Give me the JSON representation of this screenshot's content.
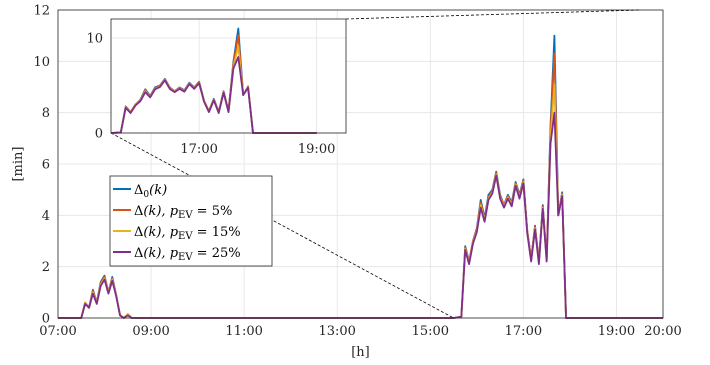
{
  "chart_data": [
    {
      "type": "line",
      "xlabel": "[h]",
      "ylabel": "[min]",
      "xlim": [
        "07:00",
        "20:00"
      ],
      "ylim": [
        0,
        12
      ],
      "grid": true,
      "legend_placement": "center-left",
      "x_ticks": [
        "07:00",
        "09:00",
        "11:00",
        "13:00",
        "15:00",
        "17:00",
        "19:00",
        "20:00"
      ],
      "y_ticks": [
        "0",
        "2",
        "4",
        "6",
        "8",
        "10",
        "12"
      ],
      "x": [
        "07:00",
        "07:30",
        "07:35",
        "07:40",
        "07:45",
        "07:50",
        "07:55",
        "08:00",
        "08:05",
        "08:10",
        "08:15",
        "08:20",
        "08:25",
        "08:30",
        "08:35",
        "08:40",
        "08:45",
        "08:50",
        "08:55",
        "09:00",
        "15:30",
        "15:40",
        "15:45",
        "15:50",
        "15:55",
        "16:00",
        "16:05",
        "16:10",
        "16:15",
        "16:20",
        "16:25",
        "16:30",
        "16:35",
        "16:40",
        "16:45",
        "16:50",
        "16:55",
        "17:00",
        "17:05",
        "17:10",
        "17:15",
        "17:20",
        "17:25",
        "17:30",
        "17:35",
        "17:40",
        "17:45",
        "17:50",
        "17:55",
        "18:00",
        "18:05",
        "18:10",
        "18:15",
        "18:20",
        "18:25",
        "18:30",
        "18:35",
        "18:40",
        "18:45",
        "19:00",
        "20:00"
      ],
      "series": [
        {
          "name": "Δ0(k)",
          "color": "#0072BD",
          "values": [
            0,
            0,
            0.6,
            0.4,
            1.1,
            0.6,
            1.4,
            1.65,
            1.0,
            1.6,
            0.9,
            0.1,
            0,
            0.15,
            0,
            0,
            0,
            0,
            0,
            0,
            0,
            0.05,
            2.8,
            2.2,
            3.0,
            3.5,
            4.6,
            3.9,
            4.8,
            5.0,
            5.7,
            4.8,
            4.4,
            4.8,
            4.5,
            5.3,
            4.8,
            5.4,
            3.4,
            2.3,
            3.6,
            2.2,
            4.4,
            2.3,
            7.5,
            11.0,
            4.0,
            4.9,
            0,
            0,
            0,
            0,
            0,
            0,
            0,
            0,
            0,
            0,
            0,
            0,
            0
          ]
        },
        {
          "name": "Δ(k), pEV = 5%",
          "color": "#D95319",
          "values": [
            0,
            0,
            0.6,
            0.4,
            1.05,
            0.6,
            1.35,
            1.6,
            1.0,
            1.55,
            0.9,
            0.1,
            0,
            0.15,
            0,
            0,
            0,
            0,
            0,
            0,
            0,
            0.05,
            2.75,
            2.2,
            3.0,
            3.45,
            4.5,
            3.85,
            4.7,
            4.95,
            5.65,
            4.75,
            4.4,
            4.75,
            4.45,
            5.25,
            4.75,
            5.35,
            3.4,
            2.3,
            3.55,
            2.2,
            4.35,
            2.3,
            7.3,
            10.3,
            4.0,
            4.85,
            0,
            0,
            0,
            0,
            0,
            0,
            0,
            0,
            0,
            0,
            0,
            0,
            0
          ]
        },
        {
          "name": "Δ(k), pEV = 15%",
          "color": "#EDB120",
          "values": [
            0,
            0,
            0.6,
            0.4,
            1.0,
            0.6,
            1.3,
            1.55,
            1.0,
            1.5,
            0.9,
            0.1,
            0,
            0.15,
            0,
            0,
            0,
            0,
            0,
            0,
            0,
            0.05,
            2.7,
            2.15,
            2.95,
            3.4,
            4.4,
            3.8,
            4.65,
            4.9,
            5.6,
            4.7,
            4.35,
            4.7,
            4.4,
            5.2,
            4.7,
            5.3,
            3.35,
            2.25,
            3.5,
            2.15,
            4.3,
            2.25,
            7.0,
            9.1,
            4.0,
            4.8,
            0,
            0,
            0,
            0,
            0,
            0,
            0,
            0,
            0,
            0,
            0,
            0,
            0
          ]
        },
        {
          "name": "Δ(k), pEV = 25%",
          "color": "#7E2F8E",
          "values": [
            0,
            0,
            0.55,
            0.4,
            0.95,
            0.55,
            1.25,
            1.5,
            0.95,
            1.45,
            0.85,
            0.1,
            0,
            0.1,
            0,
            0,
            0,
            0,
            0,
            0,
            0,
            0.05,
            2.65,
            2.1,
            2.9,
            3.35,
            4.3,
            3.75,
            4.6,
            4.85,
            5.55,
            4.65,
            4.3,
            4.65,
            4.35,
            5.15,
            4.65,
            5.25,
            3.3,
            2.2,
            3.45,
            2.1,
            4.25,
            2.2,
            6.8,
            8.0,
            4.0,
            4.75,
            0,
            0,
            0,
            0,
            0,
            0,
            0,
            0,
            0,
            0,
            0,
            0,
            0
          ]
        }
      ]
    },
    {
      "type": "line",
      "role": "inset-zoom",
      "xlim": [
        "15:30",
        "19:30"
      ],
      "ylim": [
        0,
        12
      ],
      "x_ticks": [
        "17:00",
        "19:00"
      ],
      "y_ticks": [
        "0",
        "10"
      ],
      "source_series": "same as main chart"
    }
  ],
  "legend": {
    "entries": [
      {
        "base": "Δ",
        "sub0": "0",
        "rest": "(k)",
        "color": "#0072BD"
      },
      {
        "base": "Δ",
        "sub0": "",
        "rest": "(k), ",
        "pvar": "p",
        "psub": "EV",
        "pct": " = 5%",
        "color": "#D95319"
      },
      {
        "base": "Δ",
        "sub0": "",
        "rest": "(k), ",
        "pvar": "p",
        "psub": "EV",
        "pct": " = 15%",
        "color": "#EDB120"
      },
      {
        "base": "Δ",
        "sub0": "",
        "rest": "(k), ",
        "pvar": "p",
        "psub": "EV",
        "pct": " = 25%",
        "color": "#7E2F8E"
      }
    ]
  }
}
